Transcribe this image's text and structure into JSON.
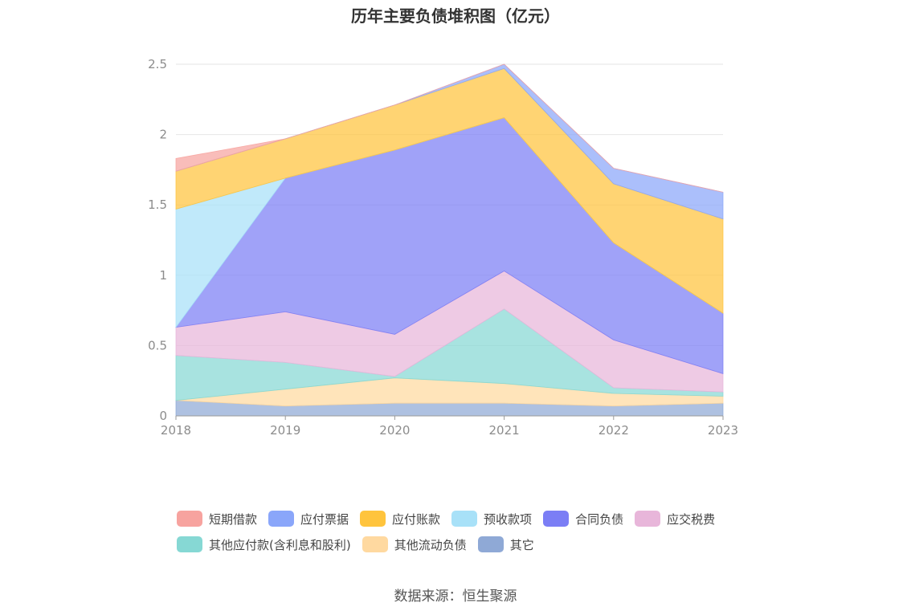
{
  "title": "历年主要负债堆积图（亿元）",
  "source": "数据来源：恒生聚源",
  "chart_data": {
    "type": "area",
    "stacked": true,
    "x": [
      "2018",
      "2019",
      "2020",
      "2021",
      "2022",
      "2023"
    ],
    "ylim": [
      0,
      2.5
    ],
    "yticks": [
      "0",
      "0.5",
      "1",
      "1.5",
      "2",
      "2.5"
    ],
    "grid": true,
    "legend_position": "bottom",
    "series": [
      {
        "name": "其它",
        "color": "#8fa9d6",
        "values": [
          0.11,
          0.07,
          0.09,
          0.09,
          0.07,
          0.09
        ]
      },
      {
        "name": "其他流动负债",
        "color": "#ffd9a0",
        "values": [
          0.0,
          0.12,
          0.18,
          0.14,
          0.09,
          0.05
        ]
      },
      {
        "name": "其他应付款(含利息和股利)",
        "color": "#86d8d4",
        "values": [
          0.32,
          0.19,
          0.01,
          0.53,
          0.04,
          0.03
        ]
      },
      {
        "name": "应交税费",
        "color": "#e8b6da",
        "values": [
          0.2,
          0.36,
          0.3,
          0.27,
          0.34,
          0.13
        ]
      },
      {
        "name": "合同负债",
        "color": "#7b7ef5",
        "values": [
          0.0,
          0.95,
          1.31,
          1.09,
          0.69,
          0.43
        ]
      },
      {
        "name": "预收款项",
        "color": "#a8e1f8",
        "values": [
          0.84,
          0.0,
          0.0,
          0.0,
          0.0,
          0.0
        ]
      },
      {
        "name": "应付账款",
        "color": "#ffc43d",
        "values": [
          0.27,
          0.28,
          0.32,
          0.35,
          0.42,
          0.67
        ]
      },
      {
        "name": "应付票据",
        "color": "#8aa6fa",
        "values": [
          0.0,
          0.0,
          0.0,
          0.03,
          0.11,
          0.19
        ]
      },
      {
        "name": "短期借款",
        "color": "#f7a39f",
        "values": [
          0.09,
          0.0,
          0.0,
          0.0,
          0.0,
          0.0
        ]
      }
    ]
  },
  "legend": {
    "row1": [
      {
        "label": "短期借款",
        "color": "#f7a39f"
      },
      {
        "label": "应付票据",
        "color": "#8aa6fa"
      },
      {
        "label": "应付账款",
        "color": "#ffc43d"
      },
      {
        "label": "预收款项",
        "color": "#a8e1f8"
      },
      {
        "label": "合同负债",
        "color": "#7b7ef5"
      },
      {
        "label": "应交税费",
        "color": "#e8b6da"
      }
    ],
    "row2": [
      {
        "label": "其他应付款(含利息和股利)",
        "color": "#86d8d4"
      },
      {
        "label": "其他流动负债",
        "color": "#ffd9a0"
      },
      {
        "label": "其它",
        "color": "#8fa9d6"
      }
    ]
  }
}
